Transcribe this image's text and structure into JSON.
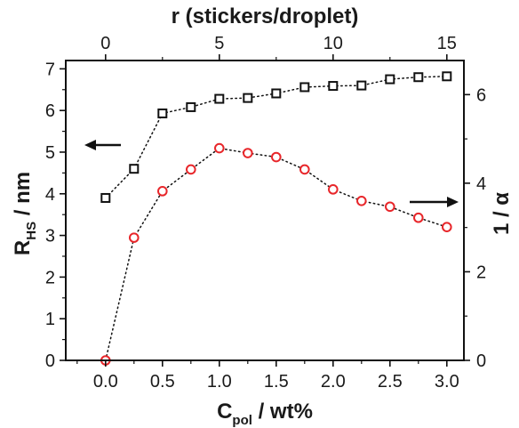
{
  "chart_data": {
    "type": "scatter",
    "x_axis_bottom": {
      "label_main": "C",
      "label_sub": "pol",
      "label_rest": " / wt%",
      "range": [
        -0.35,
        3.15
      ],
      "ticks": [
        "0.0",
        "0.5",
        "1.0",
        "1.5",
        "2.0",
        "2.5",
        "3.0"
      ],
      "tick_values": [
        0,
        0.5,
        1,
        1.5,
        2,
        2.5,
        3
      ]
    },
    "x_axis_top": {
      "label": "r (stickers/droplet)",
      "range": [
        -1.75,
        15.75
      ],
      "ticks": [
        "0",
        "5",
        "10",
        "15"
      ],
      "tick_values": [
        0,
        5,
        10,
        15
      ]
    },
    "y_axis_left": {
      "label_main": "R",
      "label_sub": "HS",
      "label_rest": " / nm",
      "range": [
        0,
        7.2
      ],
      "ticks": [
        "0",
        "1",
        "2",
        "3",
        "4",
        "5",
        "6",
        "7"
      ],
      "tick_values": [
        0,
        1,
        2,
        3,
        4,
        5,
        6,
        7
      ]
    },
    "y_axis_right": {
      "label": "1 / α",
      "range": [
        0,
        6.77
      ],
      "ticks": [
        "0",
        "2",
        "4",
        "6"
      ],
      "tick_values": [
        0,
        2,
        4,
        6
      ]
    },
    "x": [
      0,
      0.25,
      0.5,
      0.75,
      1.0,
      1.25,
      1.5,
      1.75,
      2.0,
      2.25,
      2.5,
      2.75,
      3.0
    ],
    "series": [
      {
        "marker": "square",
        "axis": "left",
        "color": "#111111",
        "values": [
          3.9,
          4.6,
          5.93,
          6.08,
          6.28,
          6.3,
          6.41,
          6.56,
          6.59,
          6.6,
          6.75,
          6.8,
          6.82
        ]
      },
      {
        "marker": "circle",
        "axis": "right",
        "color": "#e8262a",
        "values": [
          0,
          2.77,
          3.82,
          4.31,
          4.79,
          4.68,
          4.59,
          4.31,
          3.86,
          3.6,
          3.47,
          3.22,
          3.01
        ]
      }
    ],
    "annotations": [
      {
        "type": "arrow",
        "direction": "left",
        "points_to": "left-axis"
      },
      {
        "type": "arrow",
        "direction": "right",
        "points_to": "right-axis"
      }
    ],
    "grid": false,
    "connector_style": "dotted"
  }
}
